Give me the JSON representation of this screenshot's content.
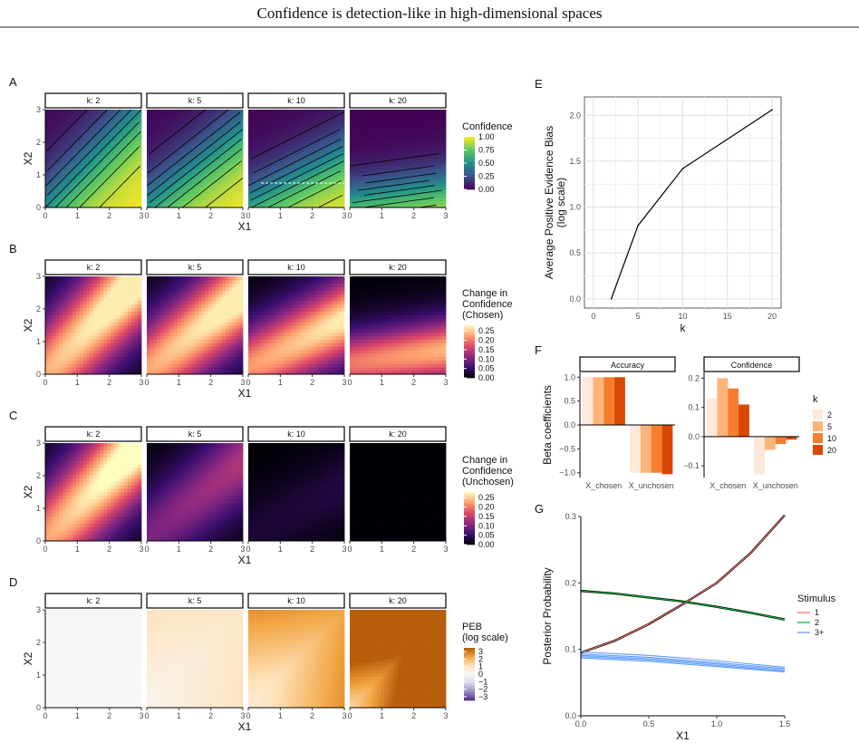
{
  "figure": {
    "title": "Confidence is detection-like in high-dimensional spaces"
  },
  "panel_labels": [
    "A",
    "B",
    "C",
    "D",
    "E",
    "F",
    "G"
  ],
  "heatmap_rows": [
    {
      "label": "A",
      "measure": "confidence",
      "palette": "viridis",
      "legend_title": [
        "Confidence"
      ],
      "legend_range": [
        0,
        1
      ],
      "legend_ticks": [
        "1.00",
        "0.75",
        "0.50",
        "0.25",
        "0.00"
      ],
      "legend_tick_values": [
        1,
        0.75,
        0.5,
        0.25,
        0
      ],
      "contours": true,
      "dashed_line": {
        "facet": 2,
        "y": 0.75,
        "x_from": 0.4,
        "x_to": 3,
        "color": "#ffffff"
      }
    },
    {
      "label": "B",
      "measure": "change_chosen",
      "palette": "magma",
      "legend_title": [
        "Change in",
        "Confidence",
        "(Chosen)"
      ],
      "legend_range": [
        0,
        0.28
      ],
      "legend_ticks": [
        "0.25",
        "0.20",
        "0.15",
        "0.10",
        "0.05",
        "0.00"
      ],
      "legend_tick_values": [
        0.25,
        0.2,
        0.15,
        0.1,
        0.05,
        0
      ]
    },
    {
      "label": "C",
      "measure": "change_unchosen",
      "palette": "magma",
      "legend_title": [
        "Change in",
        "Confidence",
        "(Unchosen)"
      ],
      "legend_range": [
        0,
        0.28
      ],
      "legend_ticks": [
        "0.25",
        "0.20",
        "0.15",
        "0.10",
        "0.05",
        "0.00"
      ],
      "legend_tick_values": [
        0.25,
        0.2,
        0.15,
        0.1,
        0.05,
        0
      ]
    },
    {
      "label": "D",
      "measure": "peb",
      "palette": "puor",
      "legend_title": [
        "PEB",
        "(log scale)"
      ],
      "legend_range": [
        -3.5,
        3.5
      ],
      "legend_ticks": [
        "3",
        "2",
        "1",
        "0",
        "−1",
        "−2",
        "−3"
      ],
      "legend_tick_values": [
        3,
        2,
        1,
        0,
        -1,
        -2,
        -3
      ]
    }
  ],
  "facets": [
    "k: 2",
    "k: 5",
    "k: 10",
    "k: 20"
  ],
  "facet_k": [
    2,
    5,
    10,
    20
  ],
  "heatmap_axes": {
    "xlabel": "X1",
    "ylabel": "X2",
    "xticks": [
      "0",
      "1",
      "2",
      "3"
    ],
    "yticks": [
      "0",
      "1",
      "2",
      "3"
    ],
    "xlim": [
      0,
      3
    ],
    "ylim": [
      0,
      3
    ]
  },
  "chart_data": [
    {
      "panel": "E",
      "type": "line",
      "x": [
        2,
        5,
        10,
        20
      ],
      "y": [
        0.0,
        0.8,
        1.42,
        2.06
      ],
      "xlabel": "k",
      "ylabel_lines": [
        "Average Positive Evidence Bias",
        "(log scale)"
      ],
      "xlim": [
        -1,
        21
      ],
      "ylim": [
        -0.1,
        2.2
      ],
      "xticks": [
        "0",
        "5",
        "10",
        "15",
        "20"
      ],
      "xtick_values": [
        0,
        5,
        10,
        15,
        20
      ],
      "yticks": [
        "0.0",
        "0.5",
        "1.0",
        "1.5",
        "2.0"
      ],
      "ytick_values": [
        0,
        0.5,
        1,
        1.5,
        2
      ],
      "grid": true,
      "line_color": "#000000"
    },
    {
      "panel": "F",
      "type": "bar",
      "ylabel": "Beta coefficients",
      "categories": [
        "X_chosen",
        "X_unchosen"
      ],
      "legend_title": "k",
      "legend": [
        "2",
        "5",
        "10",
        "20"
      ],
      "colors": [
        "#fde8d9",
        "#fbb37a",
        "#f67d2d",
        "#d94801"
      ],
      "facets": [
        {
          "strip": "Accuracy",
          "ylim": [
            -1.1,
            1.1
          ],
          "yticks": [
            "1.0",
            "0.5",
            "0.0",
            "−0.5",
            "−1.0"
          ],
          "ytick_values": [
            1,
            0.5,
            0,
            -0.5,
            -1
          ],
          "series": [
            {
              "k": "2",
              "values": [
                1.0,
                -1.0
              ]
            },
            {
              "k": "5",
              "values": [
                1.0,
                -1.0
              ]
            },
            {
              "k": "10",
              "values": [
                1.0,
                -1.0
              ]
            },
            {
              "k": "20",
              "values": [
                1.0,
                -1.03
              ]
            }
          ]
        },
        {
          "strip": "Confidence",
          "ylim": [
            -0.14,
            0.22
          ],
          "yticks": [
            "0.2",
            "0.1",
            "0.0",
            "−0.1"
          ],
          "ytick_values": [
            0.2,
            0.1,
            0,
            -0.1
          ],
          "series": [
            {
              "k": "2",
              "values": [
                0.13,
                -0.13
              ]
            },
            {
              "k": "5",
              "values": [
                0.2,
                -0.045
              ]
            },
            {
              "k": "10",
              "values": [
                0.165,
                -0.025
              ]
            },
            {
              "k": "20",
              "values": [
                0.11,
                -0.01
              ]
            }
          ]
        }
      ]
    },
    {
      "panel": "G",
      "type": "line",
      "xlabel": "X1",
      "ylabel": "Posterior Probability",
      "xlim": [
        0,
        1.5
      ],
      "ylim": [
        0,
        0.3
      ],
      "xticks": [
        "0.0",
        "0.5",
        "1.0",
        "1.5"
      ],
      "xtick_values": [
        0,
        0.5,
        1,
        1.5
      ],
      "yticks": [
        "0.3",
        "0.2",
        "0.1",
        "0.0"
      ],
      "ytick_values": [
        0.3,
        0.2,
        0.1,
        0
      ],
      "legend_title": "Stimulus",
      "legend": [
        "1",
        "2",
        "3+"
      ],
      "colors": {
        "1": "#f8766d",
        "2": "#00ba38",
        "3+": "#619cff"
      },
      "series": [
        {
          "name": "1",
          "x": [
            0,
            0.25,
            0.5,
            0.75,
            1.0,
            1.25,
            1.5
          ],
          "y": [
            0.095,
            0.113,
            0.138,
            0.168,
            0.2,
            0.245,
            0.302
          ]
        },
        {
          "name": "2",
          "x": [
            0,
            0.25,
            0.5,
            0.75,
            1.0,
            1.25,
            1.5
          ],
          "y": [
            0.188,
            0.184,
            0.178,
            0.172,
            0.164,
            0.155,
            0.145
          ]
        },
        {
          "name": "3+",
          "x": [
            0,
            0.5,
            1.0,
            1.5
          ],
          "y": [
            0.096,
            0.091,
            0.083,
            0.073
          ]
        },
        {
          "name": "3+",
          "x": [
            0,
            0.5,
            1.0,
            1.5
          ],
          "y": [
            0.093,
            0.088,
            0.08,
            0.071
          ]
        },
        {
          "name": "3+",
          "x": [
            0,
            0.5,
            1.0,
            1.5
          ],
          "y": [
            0.091,
            0.086,
            0.078,
            0.069
          ]
        },
        {
          "name": "3+",
          "x": [
            0,
            0.5,
            1.0,
            1.5
          ],
          "y": [
            0.089,
            0.084,
            0.076,
            0.067
          ]
        },
        {
          "name": "3+",
          "x": [
            0,
            0.5,
            1.0,
            1.5
          ],
          "y": [
            0.087,
            0.082,
            0.074,
            0.066
          ]
        }
      ]
    }
  ]
}
